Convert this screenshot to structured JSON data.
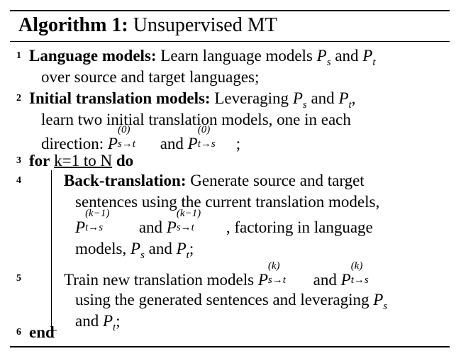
{
  "algorithm": {
    "label": "Algorithm 1:",
    "name": "Unsupervised MT"
  },
  "lines": {
    "l1": {
      "num": "1",
      "head": "Language models:",
      "text_a": " Learn language models ",
      "and": " and ",
      "cont": "over source and target languages;"
    },
    "l2": {
      "num": "2",
      "head": "Initial translation models:",
      "text_a": " Leveraging ",
      "and": " and ",
      "cont1": "learn two initial translation models, one in each",
      "cont2a": "direction: ",
      "and2": " and ",
      "end": ";"
    },
    "l3": {
      "num": "3",
      "for": "for",
      "range": "k=1 to N",
      "do": "do"
    },
    "l4": {
      "num": "4",
      "head": "Back-translation:",
      "text_a": " Generate source and target",
      "cont1": "sentences using the current translation models,",
      "and": " and ",
      "cont2b": ", factoring in language",
      "cont3a": "models, ",
      "and3": " and ",
      "end": ";"
    },
    "l5": {
      "num": "5",
      "text_a": "Train new translation models ",
      "and": " and ",
      "cont1a": "using the generated sentences and leveraging ",
      "cont2b": " and ",
      "end": ";"
    },
    "l6": {
      "num": "6",
      "end": "end"
    }
  },
  "math": {
    "P": "P",
    "s": "s",
    "t": "t",
    "s_to_t": "s→t",
    "t_to_s": "t→s",
    "sup0": "(0)",
    "supk1": "(k−1)",
    "supk": "(k)",
    "comma": ","
  }
}
